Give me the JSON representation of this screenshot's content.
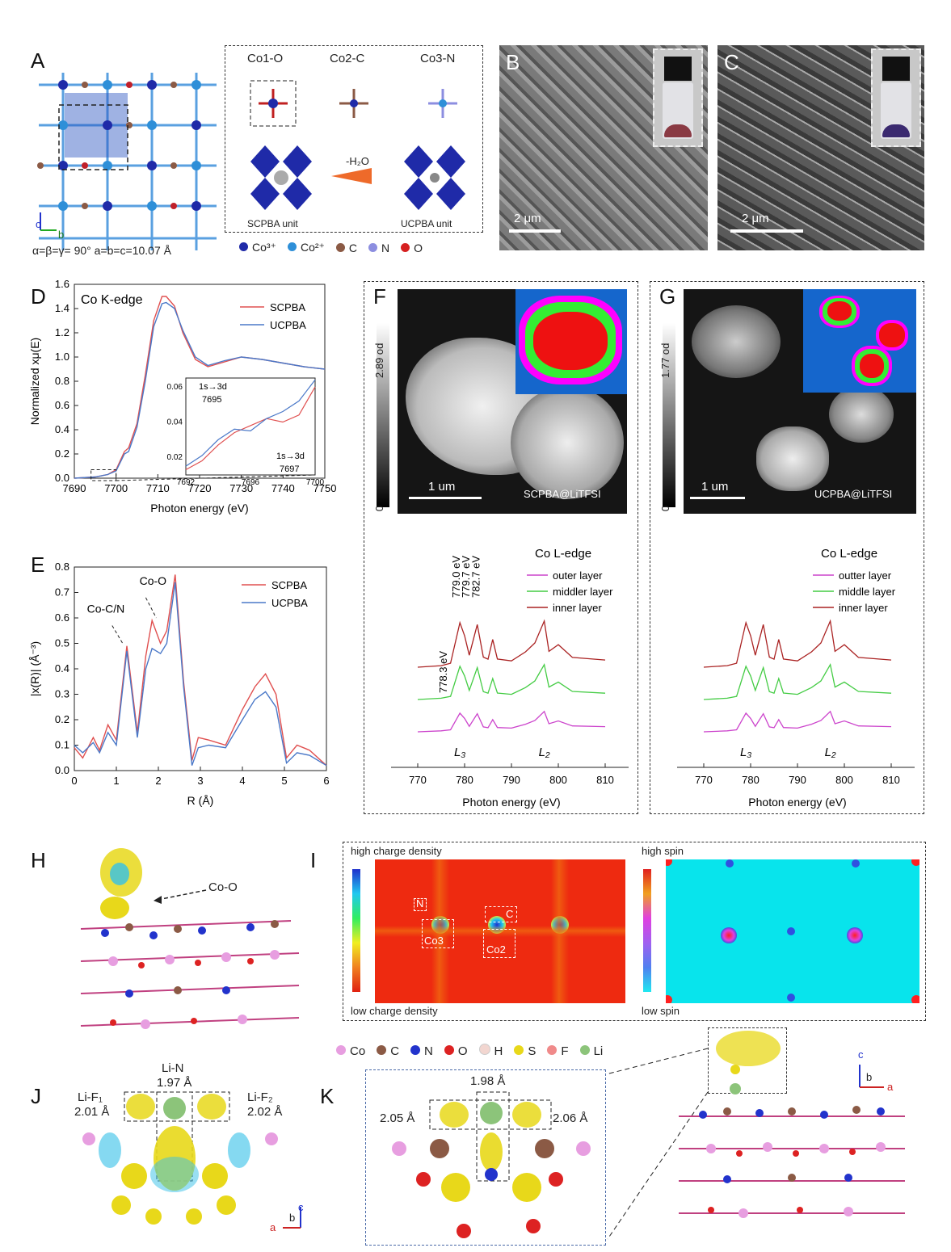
{
  "panels": {
    "A": {
      "label": "A",
      "structure_labels": [
        "Co1-O",
        "Co2-C",
        "Co3-N"
      ],
      "reaction": "-H₂O",
      "unit_left": "SCPBA unit",
      "unit_right": "UCPBA unit",
      "lattice": "α=β=γ= 90°   a=b=c=10.07 Å",
      "axes": [
        "c",
        "b"
      ],
      "legend": [
        "Co³⁺",
        "Co²⁺",
        "C",
        "N",
        "O"
      ],
      "legend_colors": [
        "#1f2aa8",
        "#2e8fd8",
        "#8b5a45",
        "#8c8ee0",
        "#d62020"
      ]
    },
    "B": {
      "label": "B",
      "scale": "2 μm"
    },
    "C": {
      "label": "C",
      "scale": "2 μm"
    },
    "D": {
      "label": "D"
    },
    "E": {
      "label": "E"
    },
    "F": {
      "label": "F",
      "scalebar": "1 um",
      "od": "2.89 od",
      "od_zero": "0",
      "sample": "SCPBA@LiTFSI",
      "edge_title": "Co L-edge",
      "legend": [
        "outer layer",
        "middler layer",
        "inner layer"
      ],
      "peaks": [
        "779.0 eV",
        "779.7 eV",
        "782.7 eV",
        "778.3 eV"
      ],
      "l3": "L₃",
      "l2": "L₂",
      "xticks": [
        "770",
        "780",
        "790",
        "800",
        "810"
      ],
      "xlabel": "Photon energy (eV)"
    },
    "G": {
      "label": "G",
      "scalebar": "1 um",
      "od": "1.77 od",
      "od_zero": "0",
      "sample": "UCPBA@LiTFSI",
      "edge_title": "Co L-edge",
      "legend": [
        "outter layer",
        "middle layer",
        "inner  layer"
      ],
      "l3": "L₃",
      "l2": "L₂",
      "xticks": [
        "770",
        "780",
        "790",
        "800",
        "810"
      ],
      "xlabel": "Photon energy (eV)"
    },
    "H": {
      "label": "H",
      "annotation": "Co-O"
    },
    "I": {
      "label": "I",
      "charge_high": "high charge density",
      "charge_low": "low charge density",
      "spin_high": "high spin",
      "spin_low": "low spin",
      "boxes": [
        "N",
        "C",
        "Co3",
        "Co2"
      ]
    },
    "atoms_legend": {
      "items": [
        "Co",
        "C",
        "N",
        "O",
        "H",
        "S",
        "F",
        "Li"
      ],
      "colors": [
        "#e79ee0",
        "#8b5a45",
        "#2233cc",
        "#dd2222",
        "#f2d6d0",
        "#e8d81a",
        "#f08a8a",
        "#8cc47a"
      ]
    },
    "J": {
      "label": "J",
      "li_n": "Li-N",
      "li_n_val": "1.97 Å",
      "li_f1": "Li-F₁",
      "li_f1_val": "2.01 Å",
      "li_f2": "Li-F₂",
      "li_f2_val": "2.02 Å",
      "axes": [
        "c",
        "b",
        "a"
      ]
    },
    "K": {
      "label": "K",
      "top": "1.98 Å",
      "left": "2.05 Å",
      "right": "2.06 Å",
      "axes": [
        "c",
        "b",
        "a"
      ]
    }
  },
  "chart_data": [
    {
      "id": "D",
      "type": "line",
      "title": "Co K-edge",
      "xlabel": "Photon energy (eV)",
      "ylabel": "Normalized xμ(E)",
      "xlim": [
        7690,
        7750
      ],
      "ylim": [
        0.0,
        1.6
      ],
      "xticks": [
        "7690",
        "7700",
        "7710",
        "7720",
        "7730",
        "7740",
        "7750"
      ],
      "yticks": [
        "0.0",
        "0.2",
        "0.4",
        "0.6",
        "0.8",
        "1.0",
        "1.2",
        "1.4",
        "1.6"
      ],
      "legend": "top-right",
      "series": [
        {
          "name": "SCPBA",
          "color": "#e05050",
          "x": [
            7690,
            7695,
            7698,
            7700,
            7702,
            7703,
            7705,
            7707,
            7709,
            7711,
            7712,
            7714,
            7716,
            7719,
            7722,
            7726,
            7730,
            7735,
            7740,
            7745,
            7750
          ],
          "y": [
            0.0,
            0.01,
            0.03,
            0.07,
            0.22,
            0.25,
            0.45,
            0.85,
            1.3,
            1.5,
            1.5,
            1.42,
            1.2,
            0.98,
            0.92,
            0.96,
            1.0,
            0.98,
            0.95,
            0.92,
            0.9
          ]
        },
        {
          "name": "UCPBA",
          "color": "#4a78c8",
          "x": [
            7690,
            7695,
            7698,
            7700,
            7702,
            7703,
            7705,
            7707,
            7709,
            7711,
            7712,
            7714,
            7716,
            7719,
            7722,
            7726,
            7730,
            7735,
            7740,
            7745,
            7750
          ],
          "y": [
            0.0,
            0.01,
            0.03,
            0.06,
            0.2,
            0.22,
            0.42,
            0.8,
            1.25,
            1.44,
            1.45,
            1.4,
            1.22,
            1.0,
            0.93,
            0.97,
            1.0,
            0.98,
            0.95,
            0.92,
            0.9
          ]
        }
      ],
      "annotations": [
        "1s→3d",
        "7695",
        "1s→3d",
        "7697"
      ],
      "inset": {
        "xlim": [
          7692,
          7700
        ],
        "ylim": [
          0.01,
          0.065
        ],
        "xticks": [
          "7692",
          "7696",
          "7700"
        ],
        "yticks": [
          "0.02",
          "0.04",
          "0.06"
        ],
        "series": [
          {
            "name": "SCPBA",
            "x": [
              7692,
              7693,
              7694,
              7695,
              7696,
              7697,
              7698,
              7699,
              7700
            ],
            "y": [
              0.013,
              0.018,
              0.027,
              0.034,
              0.038,
              0.042,
              0.04,
              0.044,
              0.06
            ]
          },
          {
            "name": "UCPBA",
            "x": [
              7692,
              7693,
              7694,
              7695,
              7696,
              7697,
              7698,
              7699,
              7700
            ],
            "y": [
              0.015,
              0.021,
              0.03,
              0.036,
              0.035,
              0.042,
              0.046,
              0.052,
              0.064
            ]
          }
        ]
      }
    },
    {
      "id": "E",
      "type": "line",
      "xlabel": "R (Å)",
      "ylabel": "|x(R)| (Å⁻³)",
      "xlim": [
        0,
        6
      ],
      "ylim": [
        0.0,
        0.8
      ],
      "xticks": [
        "0",
        "1",
        "2",
        "3",
        "4",
        "5",
        "6"
      ],
      "yticks": [
        "0.0",
        "0.1",
        "0.2",
        "0.3",
        "0.4",
        "0.5",
        "0.6",
        "0.7",
        "0.8"
      ],
      "legend": "top-right",
      "annotations": [
        "Co-O",
        "Co-C/N"
      ],
      "series": [
        {
          "name": "SCPBA",
          "color": "#e05050",
          "x": [
            0,
            0.2,
            0.45,
            0.6,
            0.8,
            1.0,
            1.25,
            1.5,
            1.7,
            1.85,
            2.05,
            2.2,
            2.4,
            2.6,
            2.8,
            2.95,
            3.2,
            3.6,
            4.0,
            4.3,
            4.55,
            4.8,
            5.05,
            5.3,
            5.6,
            6.0
          ],
          "y": [
            0.09,
            0.05,
            0.13,
            0.08,
            0.18,
            0.12,
            0.49,
            0.15,
            0.45,
            0.59,
            0.5,
            0.55,
            0.77,
            0.35,
            0.04,
            0.13,
            0.12,
            0.1,
            0.24,
            0.33,
            0.38,
            0.3,
            0.05,
            0.1,
            0.08,
            0.02
          ]
        },
        {
          "name": "UCPBA",
          "color": "#4a78c8",
          "x": [
            0,
            0.2,
            0.45,
            0.6,
            0.8,
            1.0,
            1.25,
            1.5,
            1.7,
            1.85,
            2.05,
            2.2,
            2.4,
            2.6,
            2.8,
            2.95,
            3.2,
            3.6,
            4.0,
            4.3,
            4.55,
            4.8,
            5.05,
            5.3,
            5.6,
            6.0
          ],
          "y": [
            0.1,
            0.07,
            0.11,
            0.07,
            0.15,
            0.1,
            0.47,
            0.13,
            0.4,
            0.48,
            0.46,
            0.5,
            0.74,
            0.33,
            0.02,
            0.09,
            0.1,
            0.09,
            0.2,
            0.28,
            0.31,
            0.25,
            0.03,
            0.07,
            0.06,
            0.02
          ]
        }
      ]
    },
    {
      "id": "F",
      "type": "line",
      "xlabel": "Photon energy (eV)",
      "xlim": [
        765,
        815
      ],
      "series": [
        {
          "name": "outer layer",
          "color": "#cc44cc"
        },
        {
          "name": "middler layer",
          "color": "#44cc44"
        },
        {
          "name": "inner layer",
          "color": "#aa2222"
        }
      ]
    },
    {
      "id": "G",
      "type": "line",
      "xlabel": "Photon energy (eV)",
      "xlim": [
        765,
        815
      ],
      "series": [
        {
          "name": "outter layer",
          "color": "#cc44cc"
        },
        {
          "name": "middle layer",
          "color": "#44cc44"
        },
        {
          "name": "inner  layer",
          "color": "#aa2222"
        }
      ]
    }
  ]
}
